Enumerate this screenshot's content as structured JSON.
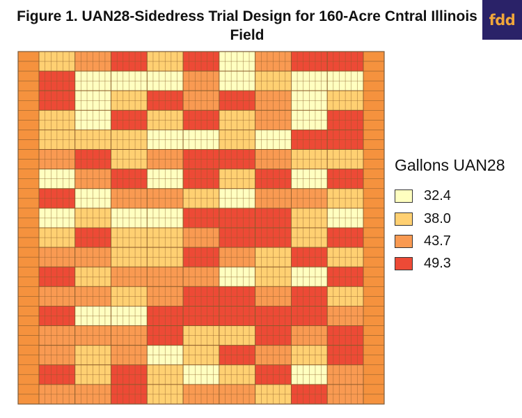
{
  "figure": {
    "title": "Figure 1. UAN28-Sidedress Trial Design for 160-Acre Cntral Illinois Field"
  },
  "logo": {
    "text": "fdd",
    "bg": "#2a2268",
    "fg": "#f0a63a"
  },
  "legend": {
    "title": "Gallons UAN28",
    "items": [
      {
        "label": "32.4",
        "color": "#ffffc0"
      },
      {
        "label": "38.0",
        "color": "#ffd072"
      },
      {
        "label": "43.7",
        "color": "#f99a52"
      },
      {
        "label": "49.3",
        "color": "#ed4a36"
      }
    ]
  },
  "map_data": {
    "type": "trial-design-grid",
    "border_color": "#f5923e",
    "rates": [
      32.4,
      38.0,
      43.7,
      49.3
    ],
    "treatment_columns": 9,
    "blocks_per_column": 18,
    "rows_per_block": 2,
    "block_rates": [
      [
        1,
        3,
        3,
        1,
        1,
        2,
        0,
        3,
        0,
        1,
        2,
        3,
        2,
        3,
        2,
        2,
        3,
        2
      ],
      [
        2,
        0,
        0,
        0,
        1,
        3,
        2,
        0,
        1,
        3,
        2,
        1,
        2,
        0,
        2,
        1,
        1,
        2
      ],
      [
        3,
        0,
        1,
        3,
        1,
        1,
        3,
        2,
        0,
        1,
        1,
        2,
        1,
        0,
        2,
        2,
        3,
        3
      ],
      [
        1,
        0,
        3,
        1,
        0,
        2,
        0,
        2,
        0,
        1,
        1,
        2,
        2,
        3,
        3,
        0,
        1,
        1
      ],
      [
        3,
        2,
        2,
        3,
        0,
        3,
        3,
        1,
        3,
        2,
        3,
        2,
        3,
        3,
        1,
        1,
        0,
        2
      ],
      [
        0,
        0,
        3,
        1,
        1,
        3,
        1,
        0,
        3,
        3,
        2,
        0,
        3,
        3,
        1,
        3,
        1,
        2
      ],
      [
        2,
        1,
        2,
        2,
        0,
        2,
        3,
        2,
        3,
        3,
        1,
        1,
        2,
        3,
        3,
        2,
        3,
        1
      ],
      [
        3,
        0,
        0,
        0,
        3,
        1,
        0,
        2,
        1,
        1,
        3,
        0,
        3,
        3,
        2,
        1,
        0,
        3
      ],
      [
        3,
        0,
        1,
        3,
        3,
        1,
        3,
        1,
        0,
        3,
        1,
        3,
        1,
        2,
        3,
        3,
        2,
        2
      ]
    ]
  }
}
